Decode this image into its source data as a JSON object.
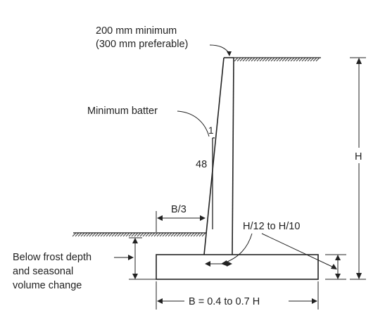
{
  "labels": {
    "top_min_line1": "200 mm minimum",
    "top_min_line2": "(300 mm preferable)",
    "min_batter": "Minimum batter",
    "batter_run": "1",
    "batter_rise": "48",
    "toe_width": "B/3",
    "height": "H",
    "base_thickness": "H/12 to H/10",
    "frost_line1": "Below frost depth",
    "frost_line2": "and seasonal",
    "frost_line3": "volume change",
    "base_width": "B = 0.4 to 0.7 H"
  }
}
